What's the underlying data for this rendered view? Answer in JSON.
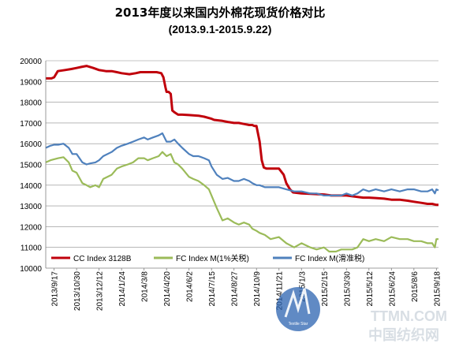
{
  "chart_data": {
    "type": "line",
    "title": "2013年度以来国内外棉花现货价格对比",
    "subtitle": "(2013.9.1-2015.9.22)",
    "xlabel": "",
    "ylabel": "",
    "ylim": [
      10000,
      20000
    ],
    "yticks": [
      10000,
      11000,
      12000,
      13000,
      14000,
      15000,
      16000,
      17000,
      18000,
      19000,
      20000
    ],
    "grid": true,
    "legend_position": "bottom",
    "x_start": "2013/9/1",
    "x_end": "2015/9/22",
    "xtick_labels": [
      "2013/9/17",
      "2013/10/30",
      "2013/12/12",
      "2014/1/24",
      "2014/3/8",
      "2014/4/20",
      "2014/6/2",
      "2014/7/15",
      "2014/8/27",
      "2014/10/9",
      "2014/11/21",
      "2015/1/3",
      "2015/2/15",
      "2015/3/30",
      "2015/5/12",
      "2015/6/24",
      "2015/8/6",
      "2015/9/18"
    ],
    "series": [
      {
        "name": "CC Index 3128B",
        "color": "#c0000b",
        "x": [
          "2013/9/1",
          "2013/9/12",
          "2013/9/17",
          "2013/9/24",
          "2013/10/8",
          "2013/10/20",
          "2013/10/30",
          "2013/11/8",
          "2013/11/18",
          "2013/12/1",
          "2013/12/12",
          "2013/12/25",
          "2014/1/5",
          "2014/1/15",
          "2014/1/24",
          "2014/2/8",
          "2014/2/20",
          "2014/3/1",
          "2014/3/8",
          "2014/3/20",
          "2014/4/1",
          "2014/4/10",
          "2014/4/14",
          "2014/4/18",
          "2014/4/20",
          "2014/4/24",
          "2014/4/28",
          "2014/5/1",
          "2014/5/6",
          "2014/5/12",
          "2014/5/20",
          "2014/6/2",
          "2014/6/20",
          "2014/7/1",
          "2014/7/15",
          "2014/7/20",
          "2014/8/5",
          "2014/8/15",
          "2014/8/27",
          "2014/9/5",
          "2014/9/15",
          "2014/9/25",
          "2014/10/1",
          "2014/10/5",
          "2014/10/9",
          "2014/10/15",
          "2014/10/19",
          "2014/10/23",
          "2014/10/28",
          "2014/11/4",
          "2014/11/10",
          "2014/11/21",
          "2014/11/30",
          "2014/12/5",
          "2014/12/12",
          "2014/12/18",
          "2015/1/3",
          "2015/1/20",
          "2015/2/15",
          "2015/3/1",
          "2015/3/15",
          "2015/3/30",
          "2015/4/15",
          "2015/5/1",
          "2015/5/12",
          "2015/5/25",
          "2015/6/10",
          "2015/6/24",
          "2015/7/10",
          "2015/7/25",
          "2015/8/6",
          "2015/8/20",
          "2015/9/1",
          "2015/9/10",
          "2015/9/18",
          "2015/9/22"
        ],
        "y": [
          19150,
          19150,
          19200,
          19500,
          19550,
          19600,
          19650,
          19700,
          19750,
          19650,
          19550,
          19500,
          19500,
          19450,
          19400,
          19350,
          19400,
          19450,
          19450,
          19450,
          19450,
          19400,
          19200,
          18700,
          18500,
          18500,
          18400,
          17600,
          17500,
          17400,
          17400,
          17380,
          17350,
          17300,
          17200,
          17150,
          17100,
          17050,
          17000,
          17000,
          16950,
          16900,
          16900,
          16850,
          16850,
          16100,
          15200,
          14850,
          14800,
          14800,
          14800,
          14800,
          14500,
          14100,
          13800,
          13650,
          13600,
          13580,
          13550,
          13500,
          13500,
          13500,
          13450,
          13400,
          13400,
          13380,
          13350,
          13300,
          13300,
          13250,
          13200,
          13150,
          13100,
          13100,
          13050,
          13050
        ]
      },
      {
        "name": "FC Index M(1%关税)",
        "color": "#9bbb59",
        "x": [
          "2013/9/1",
          "2013/9/10",
          "2013/9/17",
          "2013/9/25",
          "2013/10/5",
          "2013/10/15",
          "2013/10/22",
          "2013/10/30",
          "2013/11/10",
          "2013/11/18",
          "2013/11/25",
          "2013/12/5",
          "2013/12/12",
          "2013/12/20",
          "2014/1/5",
          "2014/1/15",
          "2014/1/24",
          "2014/2/5",
          "2014/2/15",
          "2014/2/25",
          "2014/3/8",
          "2014/3/15",
          "2014/3/25",
          "2014/4/5",
          "2014/4/12",
          "2014/4/20",
          "2014/4/28",
          "2014/5/5",
          "2014/5/12",
          "2014/5/20",
          "2014/6/2",
          "2014/6/10",
          "2014/6/20",
          "2014/7/1",
          "2014/7/10",
          "2014/7/15",
          "2014/7/25",
          "2014/8/5",
          "2014/8/15",
          "2014/8/27",
          "2014/9/5",
          "2014/9/15",
          "2014/9/25",
          "2014/10/1",
          "2014/10/9",
          "2014/10/15",
          "2014/10/25",
          "2014/11/5",
          "2014/11/21",
          "2014/12/5",
          "2014/12/20",
          "2015/1/3",
          "2015/1/20",
          "2015/2/1",
          "2015/2/15",
          "2015/2/25",
          "2015/3/10",
          "2015/3/20",
          "2015/3/30",
          "2015/4/10",
          "2015/4/20",
          "2015/5/1",
          "2015/5/12",
          "2015/5/25",
          "2015/6/10",
          "2015/6/24",
          "2015/7/10",
          "2015/7/25",
          "2015/8/6",
          "2015/8/20",
          "2015/9/1",
          "2015/9/10",
          "2015/9/15",
          "2015/9/18",
          "2015/9/22"
        ],
        "y": [
          15100,
          15200,
          15250,
          15300,
          15350,
          15100,
          14700,
          14600,
          14100,
          14000,
          13900,
          14000,
          13900,
          14300,
          14500,
          14800,
          14900,
          15000,
          15100,
          15300,
          15300,
          15200,
          15300,
          15400,
          15600,
          15400,
          15500,
          15100,
          15000,
          14800,
          14400,
          14300,
          14200,
          14000,
          13800,
          13500,
          12900,
          12300,
          12400,
          12200,
          12100,
          12200,
          12100,
          11900,
          11800,
          11700,
          11600,
          11400,
          11500,
          11200,
          11000,
          11200,
          11000,
          10900,
          11000,
          10800,
          10800,
          10900,
          10900,
          10900,
          11000,
          11400,
          11300,
          11400,
          11300,
          11500,
          11400,
          11400,
          11300,
          11300,
          11200,
          11200,
          11000,
          11400,
          11400
        ]
      },
      {
        "name": "FC Index M(滑准税)",
        "color": "#4f81bd",
        "x": [
          "2013/9/1",
          "2013/9/10",
          "2013/9/17",
          "2013/9/25",
          "2013/10/5",
          "2013/10/15",
          "2013/10/22",
          "2013/10/30",
          "2013/11/10",
          "2013/11/18",
          "2013/11/25",
          "2013/12/5",
          "2013/12/12",
          "2013/12/20",
          "2014/1/5",
          "2014/1/15",
          "2014/1/24",
          "2014/2/5",
          "2014/2/15",
          "2014/2/25",
          "2014/3/8",
          "2014/3/15",
          "2014/3/25",
          "2014/4/5",
          "2014/4/12",
          "2014/4/20",
          "2014/4/28",
          "2014/5/5",
          "2014/5/12",
          "2014/5/20",
          "2014/6/2",
          "2014/6/10",
          "2014/6/20",
          "2014/7/1",
          "2014/7/10",
          "2014/7/15",
          "2014/7/25",
          "2014/8/5",
          "2014/8/15",
          "2014/8/27",
          "2014/9/5",
          "2014/9/15",
          "2014/9/25",
          "2014/10/1",
          "2014/10/9",
          "2014/10/15",
          "2014/10/25",
          "2014/11/5",
          "2014/11/21",
          "2014/12/5",
          "2014/12/20",
          "2015/1/3",
          "2015/1/20",
          "2015/2/1",
          "2015/2/15",
          "2015/2/25",
          "2015/3/10",
          "2015/3/20",
          "2015/3/30",
          "2015/4/10",
          "2015/4/20",
          "2015/5/1",
          "2015/5/12",
          "2015/5/25",
          "2015/6/10",
          "2015/6/24",
          "2015/7/10",
          "2015/7/25",
          "2015/8/6",
          "2015/8/20",
          "2015/9/1",
          "2015/9/10",
          "2015/9/15",
          "2015/9/18",
          "2015/9/22"
        ],
        "y": [
          15800,
          15900,
          15950,
          15950,
          16000,
          15800,
          15500,
          15500,
          15100,
          15000,
          15050,
          15100,
          15200,
          15400,
          15600,
          15800,
          15900,
          16000,
          16100,
          16200,
          16300,
          16200,
          16300,
          16400,
          16500,
          16100,
          16100,
          16200,
          16000,
          15800,
          15500,
          15400,
          15400,
          15300,
          15200,
          14900,
          14500,
          14300,
          14350,
          14200,
          14200,
          14300,
          14200,
          14100,
          14000,
          14000,
          13900,
          13900,
          13900,
          13800,
          13700,
          13700,
          13600,
          13600,
          13500,
          13500,
          13500,
          13500,
          13600,
          13500,
          13600,
          13800,
          13700,
          13800,
          13700,
          13800,
          13700,
          13800,
          13800,
          13700,
          13700,
          13800,
          13600,
          13800,
          13750
        ]
      }
    ]
  },
  "watermark": {
    "text": "中国纺织网",
    "subtext": "TTMN.COM",
    "logo_name": "Textile Star"
  }
}
